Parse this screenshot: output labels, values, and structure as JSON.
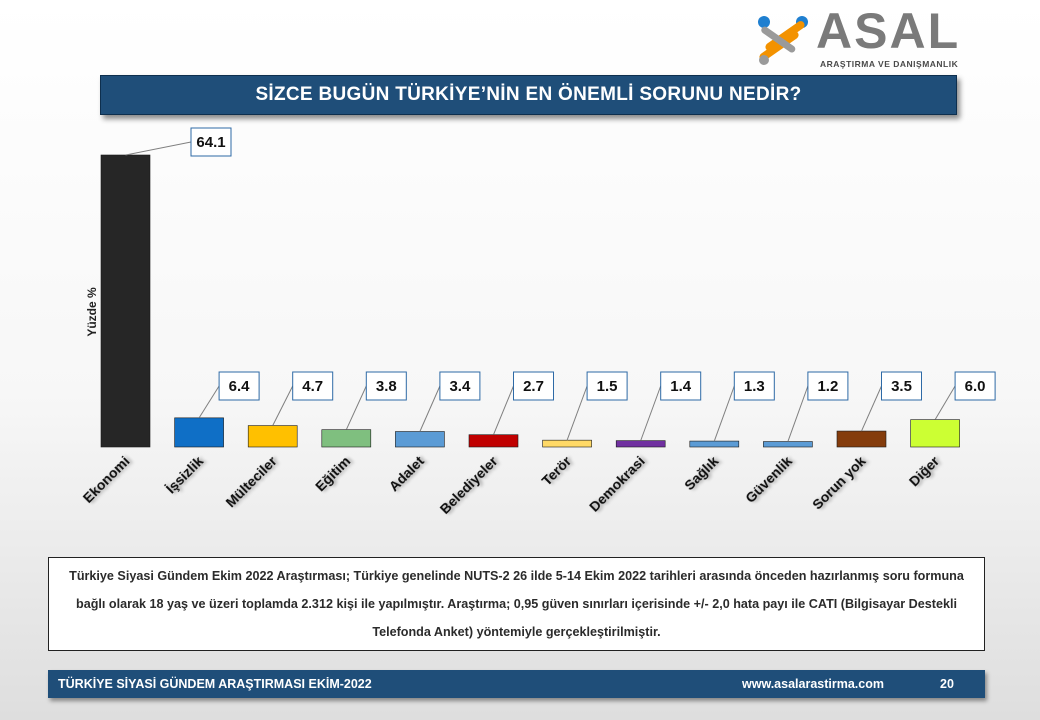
{
  "logo": {
    "brand": "ASAL",
    "tagline": "ARAŞTIRMA VE DANIŞMANLIK"
  },
  "title": "SİZCE BUGÜN TÜRKİYE’NİN EN ÖNEMLİ SORUNU NEDİR?",
  "chart_data": {
    "type": "bar",
    "ylabel": "Yüzde %",
    "ylim": [
      0,
      64.1
    ],
    "grid": false,
    "categories": [
      "Ekonomi",
      "İşsizlik",
      "Mülteciler",
      "Eğitim",
      "Adalet",
      "Belediyeler",
      "Terör",
      "Demokrasi",
      "Sağlık",
      "Güvenlik",
      "Sorun yok",
      "Diğer"
    ],
    "values": [
      64.1,
      6.4,
      4.7,
      3.8,
      3.4,
      2.7,
      1.5,
      1.4,
      1.3,
      1.2,
      3.5,
      6.0
    ],
    "labels": [
      "64.1",
      "6.4",
      "4.7",
      "3.8",
      "3.4",
      "2.7",
      "1.5",
      "1.4",
      "1.3",
      "1.2",
      "3.5",
      "6.0"
    ],
    "colors": [
      "#262626",
      "#0f6fc6",
      "#ffc000",
      "#7fbf7f",
      "#5b9bd5",
      "#c00000",
      "#ffd966",
      "#7030a0",
      "#5b9bd5",
      "#5b9bd5",
      "#843c0c",
      "#ccff33"
    ]
  },
  "note": "Türkiye Siyasi Gündem Ekim 2022 Araştırması; Türkiye genelinde NUTS-2 26 ilde 5-14 Ekim 2022  tarihleri arasında önceden hazırlanmış soru formuna bağlı olarak 18 yaş ve üzeri toplamda 2.312 kişi ile yapılmıştır. Araştırma; 0,95 güven sınırları içerisinde +/- 2,0 hata payı ile CATI (Bilgisayar Destekli Telefonda Anket) yöntemiyle gerçekleştirilmiştir.",
  "footer": {
    "left": "TÜRKİYE SİYASİ GÜNDEM ARAŞTIRMASI EKİM-2022",
    "url": "www.asalarastirma.com",
    "page": "20"
  }
}
